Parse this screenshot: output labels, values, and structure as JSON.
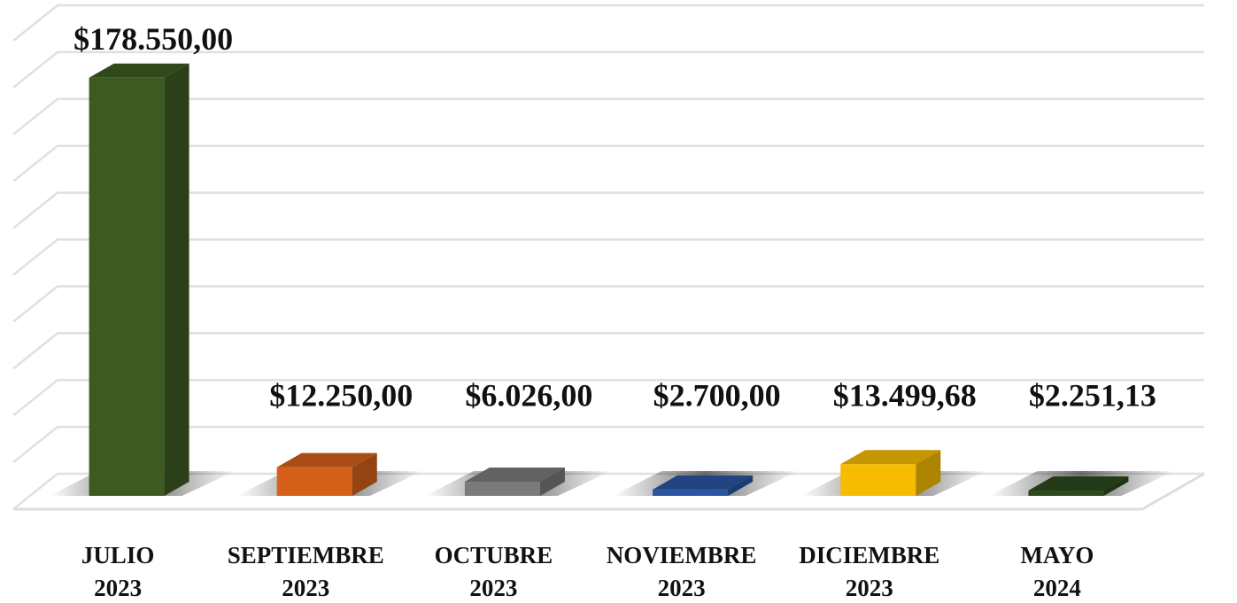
{
  "chart_data": {
    "type": "bar3d",
    "categories": [
      [
        "JULIO",
        "2023"
      ],
      [
        "SEPTIEMBRE",
        "2023"
      ],
      [
        "OCTUBRE",
        "2023"
      ],
      [
        "NOVIEMBRE",
        "2023"
      ],
      [
        "DICIEMBRE",
        "2023"
      ],
      [
        "MAYO",
        "2024"
      ]
    ],
    "values": [
      178550,
      12250,
      6026,
      2700,
      13499.68,
      2251.13
    ],
    "value_labels": [
      "$178.550,00",
      "$12.250,00",
      "$6.026,00",
      "$2.700,00",
      "$13.499,68",
      "$2.251,13"
    ],
    "colors": [
      "#3d5a22",
      "#d4601a",
      "#7a7a7a",
      "#2a55a0",
      "#f5bc00",
      "#2d4a1e"
    ],
    "ylim": [
      0,
      200000
    ],
    "yticks": [
      0,
      20000,
      40000,
      60000,
      80000,
      100000,
      120000,
      140000,
      160000,
      180000,
      200000
    ],
    "grid": true
  }
}
